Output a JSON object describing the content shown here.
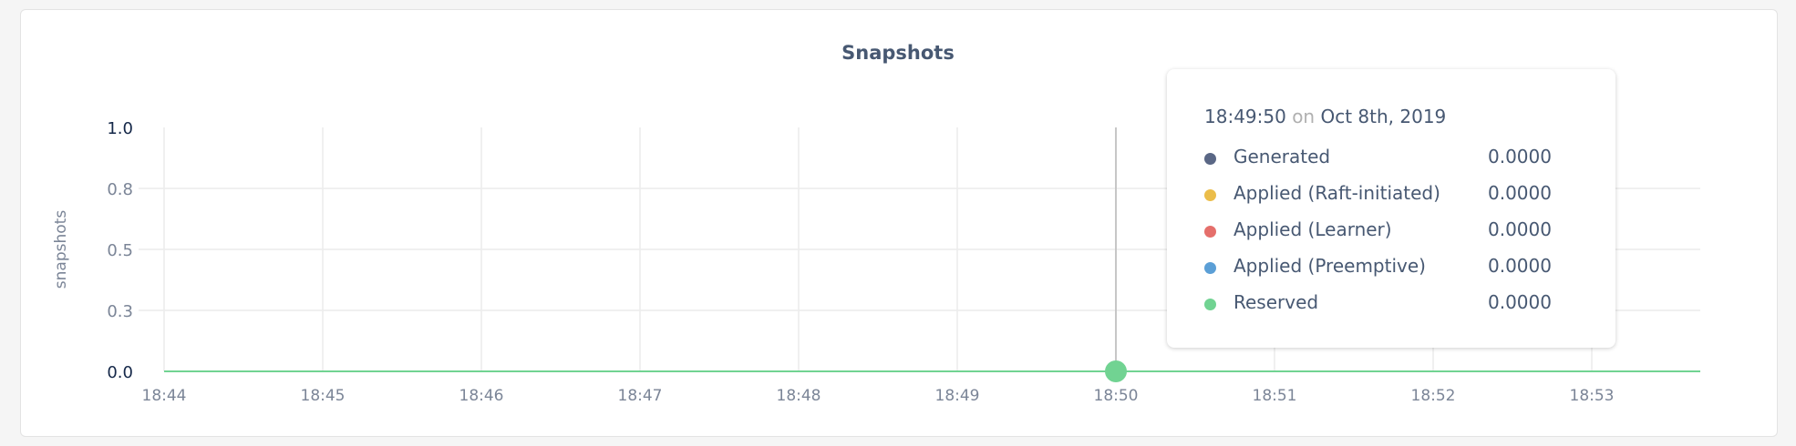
{
  "chart_data": {
    "type": "line",
    "title": "Snapshots",
    "ylabel": "snapshots",
    "ylim": [
      0,
      1
    ],
    "yticks": [
      "1.0",
      "0.8",
      "0.5",
      "0.3",
      "0.0"
    ],
    "xticks": [
      "18:44",
      "18:45",
      "18:46",
      "18:47",
      "18:48",
      "18:49",
      "18:50",
      "18:51",
      "18:52",
      "18:53"
    ],
    "grid": true,
    "series": [
      {
        "name": "Generated",
        "color": "#5a6785",
        "values": [
          0,
          0,
          0,
          0,
          0,
          0,
          0,
          0,
          0,
          0
        ]
      },
      {
        "name": "Applied (Raft-initiated)",
        "color": "#ebbd4a",
        "values": [
          0,
          0,
          0,
          0,
          0,
          0,
          0,
          0,
          0,
          0
        ]
      },
      {
        "name": "Applied (Learner)",
        "color": "#e56f6b",
        "values": [
          0,
          0,
          0,
          0,
          0,
          0,
          0,
          0,
          0,
          0
        ]
      },
      {
        "name": "Applied (Preemptive)",
        "color": "#5b9fd6",
        "values": [
          0,
          0,
          0,
          0,
          0,
          0,
          0,
          0,
          0,
          0
        ]
      },
      {
        "name": "Reserved",
        "color": "#71d392",
        "values": [
          0,
          0,
          0,
          0,
          0,
          0,
          0,
          0,
          0,
          0
        ]
      }
    ]
  },
  "tooltip": {
    "time": "18:49:50",
    "on": "on",
    "date": "Oct 8th, 2019",
    "rows": [
      {
        "label": "Generated",
        "value": "0.0000",
        "color": "#5a6785"
      },
      {
        "label": "Applied (Raft-initiated)",
        "value": "0.0000",
        "color": "#ebbd4a"
      },
      {
        "label": "Applied (Learner)",
        "value": "0.0000",
        "color": "#e56f6b"
      },
      {
        "label": "Applied (Preemptive)",
        "value": "0.0000",
        "color": "#5b9fd6"
      },
      {
        "label": "Reserved",
        "value": "0.0000",
        "color": "#71d392"
      }
    ]
  }
}
